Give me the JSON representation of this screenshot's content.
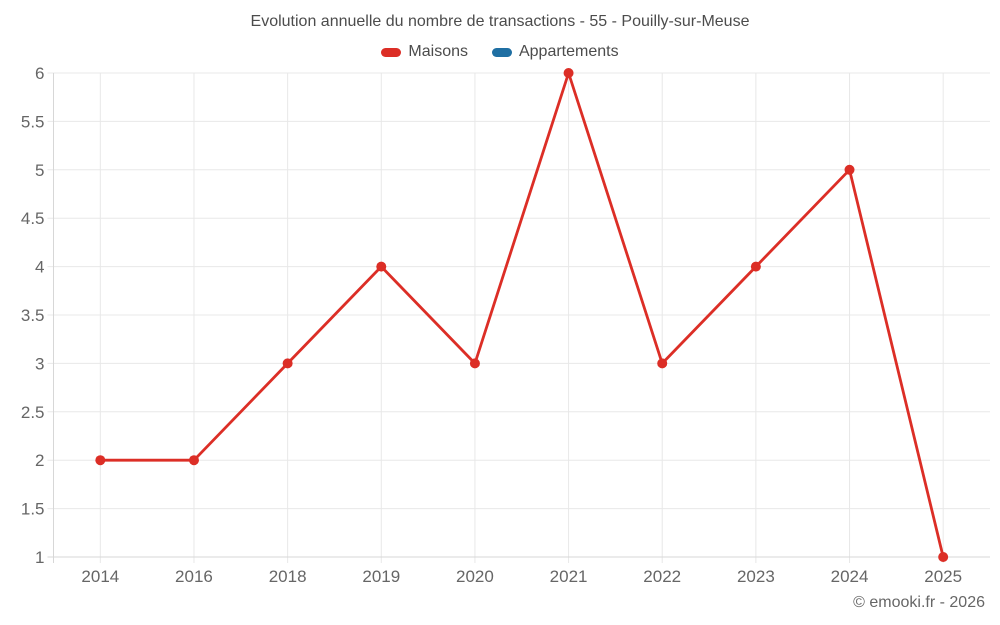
{
  "chart": {
    "attribution": "© emooki.fr - 2026"
  },
  "chart_data": {
    "type": "line",
    "title": "Evolution annuelle du nombre de transactions - 55 - Pouilly-sur-Meuse",
    "categories": [
      "2014",
      "2016",
      "2018",
      "2019",
      "2020",
      "2021",
      "2022",
      "2023",
      "2024",
      "2025"
    ],
    "series": [
      {
        "name": "Maisons",
        "color": "#dc2e26",
        "marker": "circle",
        "values": [
          2,
          2,
          3,
          4,
          3,
          6,
          3,
          4,
          5,
          1
        ]
      },
      {
        "name": "Appartements",
        "color": "#1f6fa3",
        "marker": "circle",
        "values": []
      }
    ],
    "xlabel": "",
    "ylabel": "",
    "ylim": [
      1,
      6
    ],
    "ytick_step": 0.5,
    "grid": true,
    "legend_position": "top",
    "colors": {
      "grid": "#e8e8e8",
      "axis": "#d7d7d7",
      "tick_text": "#666666",
      "title_text": "#4c4c4c"
    }
  }
}
